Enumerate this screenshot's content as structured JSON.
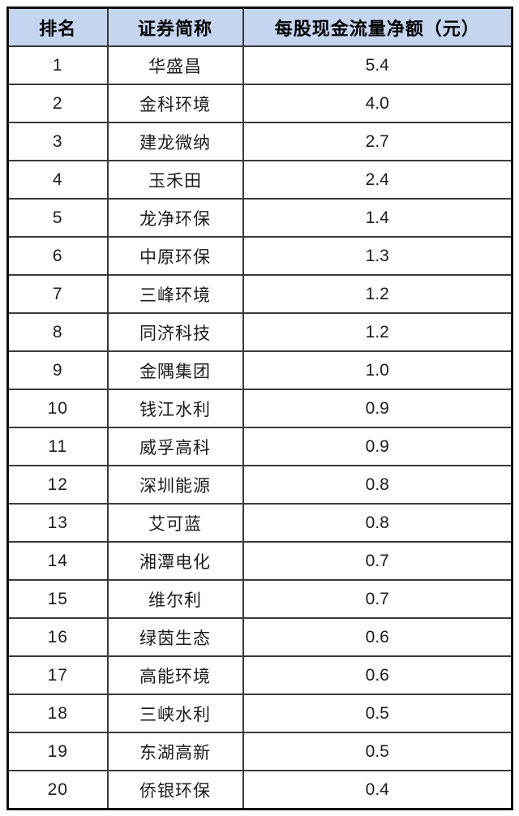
{
  "colors": {
    "header_bg": "#C5D4EF",
    "grid_border": "#3A3A3A",
    "outer_border": "#0D0D0D",
    "text": "#1C1C1C",
    "page_bg": "#FFFFFF"
  },
  "chart_data": {
    "type": "table",
    "title": "",
    "columns": [
      "排名",
      "证券简称",
      "每股现金流量净额（元）"
    ],
    "rows": [
      {
        "rank": "1",
        "name": "华盛昌",
        "value": "5.4"
      },
      {
        "rank": "2",
        "name": "金科环境",
        "value": "4.0"
      },
      {
        "rank": "3",
        "name": "建龙微纳",
        "value": "2.7"
      },
      {
        "rank": "4",
        "name": "玉禾田",
        "value": "2.4"
      },
      {
        "rank": "5",
        "name": "龙净环保",
        "value": "1.4"
      },
      {
        "rank": "6",
        "name": "中原环保",
        "value": "1.3"
      },
      {
        "rank": "7",
        "name": "三峰环境",
        "value": "1.2"
      },
      {
        "rank": "8",
        "name": "同济科技",
        "value": "1.2"
      },
      {
        "rank": "9",
        "name": "金隅集团",
        "value": "1.0"
      },
      {
        "rank": "10",
        "name": "钱江水利",
        "value": "0.9"
      },
      {
        "rank": "11",
        "name": "威孚高科",
        "value": "0.9"
      },
      {
        "rank": "12",
        "name": "深圳能源",
        "value": "0.8"
      },
      {
        "rank": "13",
        "name": "艾可蓝",
        "value": "0.8"
      },
      {
        "rank": "14",
        "name": "湘潭电化",
        "value": "0.7"
      },
      {
        "rank": "15",
        "name": "维尔利",
        "value": "0.7"
      },
      {
        "rank": "16",
        "name": "绿茵生态",
        "value": "0.6"
      },
      {
        "rank": "17",
        "name": "高能环境",
        "value": "0.6"
      },
      {
        "rank": "18",
        "name": "三峡水利",
        "value": "0.5"
      },
      {
        "rank": "19",
        "name": "东湖高新",
        "value": "0.5"
      },
      {
        "rank": "20",
        "name": "侨银环保",
        "value": "0.4"
      }
    ]
  }
}
